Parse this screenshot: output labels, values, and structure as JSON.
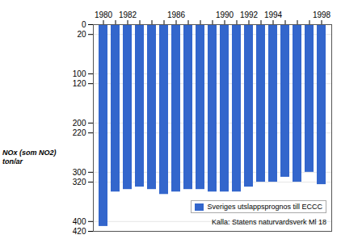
{
  "chart_data": {
    "type": "bar",
    "categories": [
      "1980",
      null,
      "1982",
      null,
      null,
      null,
      "1986",
      null,
      null,
      null,
      "1990",
      null,
      "1992",
      null,
      "1994",
      null,
      null,
      null,
      "1998"
    ],
    "series": [
      {
        "name": "Sveriges utslappsprognos till ECCC",
        "color": "#3366cc",
        "values": [
          410,
          340,
          335,
          330,
          335,
          345,
          340,
          335,
          335,
          340,
          340,
          340,
          330,
          320,
          320,
          310,
          320,
          300,
          325
        ]
      }
    ],
    "ylabel": "NOx (som NO2)\nton/ar",
    "ylim": [
      420,
      0
    ],
    "yticks": [
      0,
      20,
      100,
      120,
      200,
      220,
      300,
      320,
      400,
      420
    ],
    "grid": true,
    "legend": "lower right",
    "annotations": [
      "Kalla: Statens naturvardsverk Ml 18"
    ]
  }
}
